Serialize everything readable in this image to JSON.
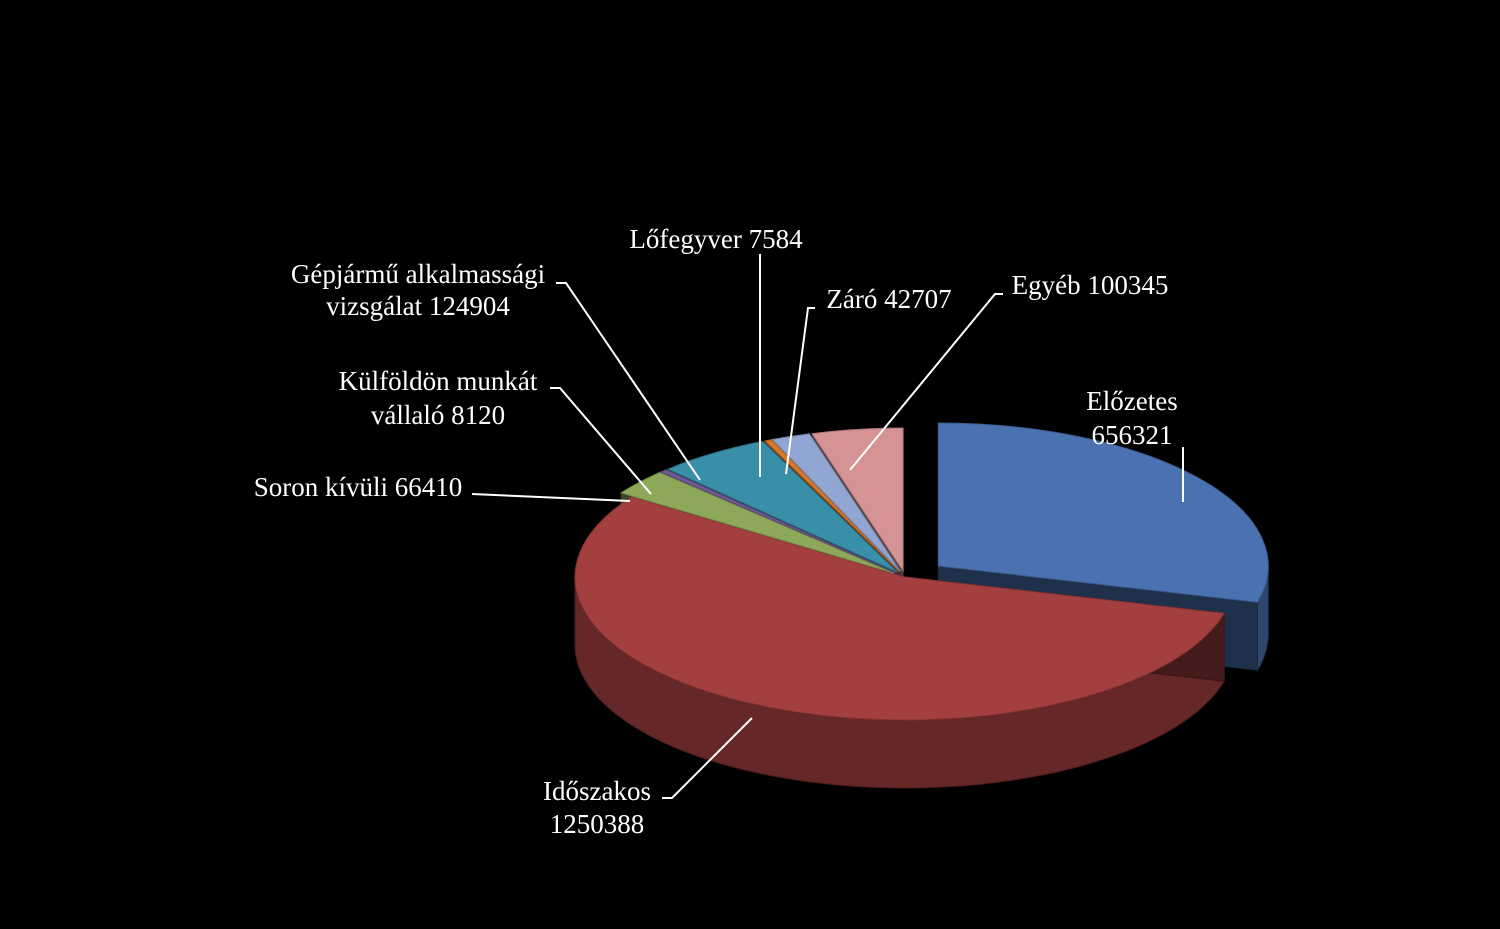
{
  "chart_data": {
    "type": "pie",
    "title": "",
    "slices": [
      {
        "name": "Előzetes",
        "value": 656321,
        "color": "#4a72b0",
        "label_lines": [
          "Előzetes",
          "656321"
        ]
      },
      {
        "name": "Időszakos",
        "value": 1250388,
        "color": "#a33f3f",
        "label_lines": [
          "Időszakos",
          "1250388"
        ]
      },
      {
        "name": "Soron kívüli",
        "value": 66410,
        "color": "#8ea85a",
        "label_lines": [
          "Soron kívüli 66410"
        ]
      },
      {
        "name": "Külföldön munkát vállaló",
        "value": 8120,
        "color": "#6e5a95",
        "label_lines": [
          "Külföldön munkát",
          "vállaló 8120"
        ]
      },
      {
        "name": "Gépjármű alkalmassági vizsgálat",
        "value": 124904,
        "color": "#3a8fa8",
        "label_lines": [
          "Gépjármű alkalmassági",
          "vizsgálat 124904"
        ]
      },
      {
        "name": "Lőfegyver",
        "value": 7584,
        "color": "#d9772b",
        "label_lines": [
          "Lőfegyver 7584"
        ]
      },
      {
        "name": "Záró",
        "value": 42707,
        "color": "#92a6d3",
        "label_lines": [
          "Záró 42707"
        ]
      },
      {
        "name": "Egyéb",
        "value": 100345,
        "color": "#d59393",
        "label_lines": [
          "Egyéb 100345"
        ]
      }
    ],
    "legend": "none",
    "data_labels": "outside with leader lines"
  }
}
